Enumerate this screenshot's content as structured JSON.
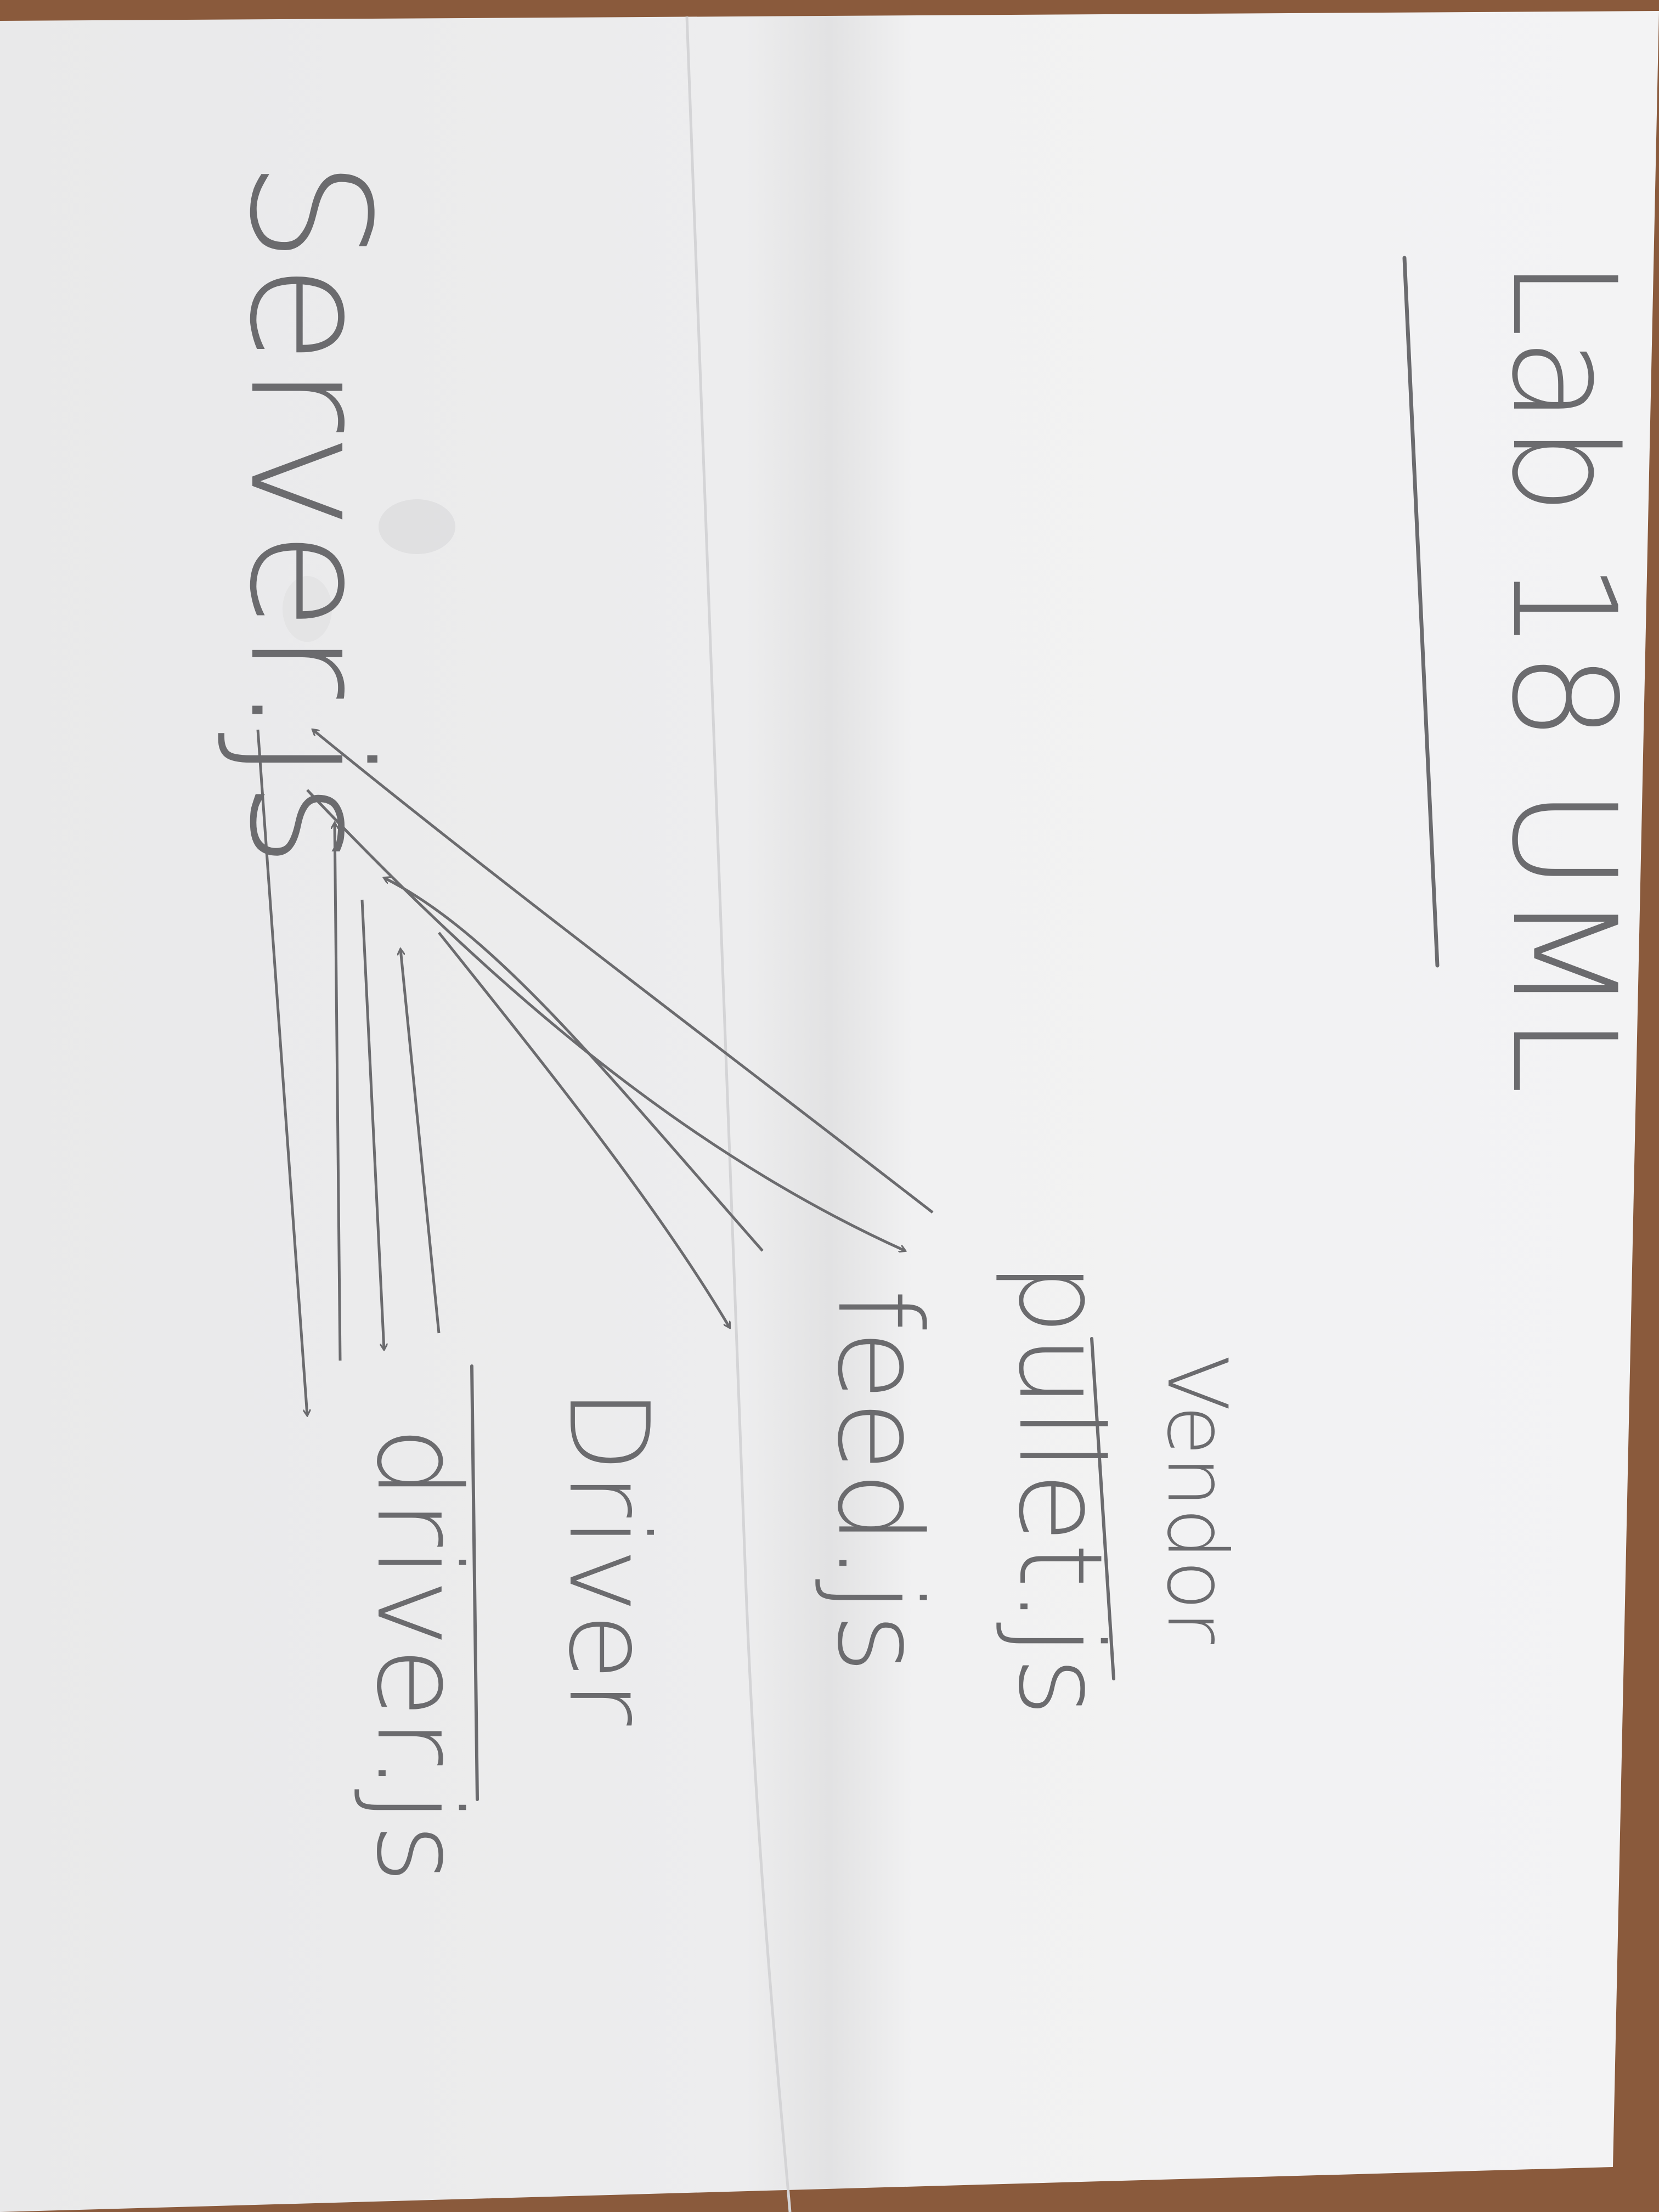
{
  "title": "Lab 18 UML",
  "nodes": {
    "server": "Server.js",
    "pullet": "pullet.js",
    "feed": "feed.js",
    "driver": "driver.js"
  },
  "groups": {
    "vendor": "Vendor",
    "driver": "Driver"
  },
  "colors": {
    "paper": "#f3f3f4",
    "pencil": "#6b6b6e",
    "table": "#8a5a3c"
  }
}
